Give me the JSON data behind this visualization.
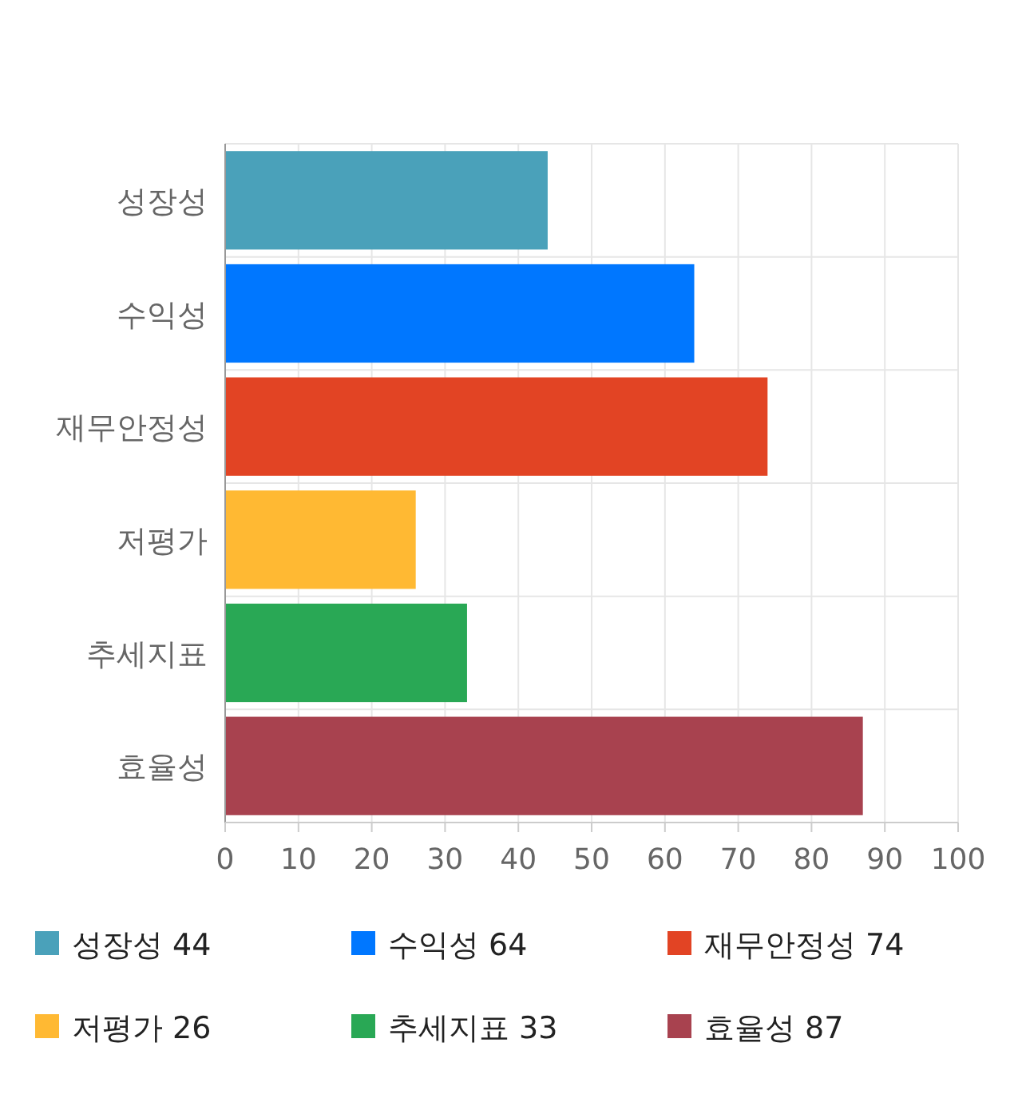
{
  "chart_data": {
    "type": "bar",
    "orientation": "horizontal",
    "stacked": true,
    "categories": [
      "성장성",
      "수익성",
      "재무안정성",
      "저평가",
      "추세지표",
      "효율성"
    ],
    "series": [
      {
        "name": "성장성 44",
        "color": "#4aa1ba",
        "values": [
          44,
          null,
          null,
          null,
          null,
          null
        ]
      },
      {
        "name": "수익성 64",
        "color": "#0077ff",
        "values": [
          null,
          64,
          null,
          null,
          null,
          null
        ]
      },
      {
        "name": "재무안정성 74",
        "color": "#e24424",
        "values": [
          null,
          null,
          74,
          null,
          null,
          null
        ]
      },
      {
        "name": "저평가 26",
        "color": "#ffb933",
        "values": [
          null,
          null,
          null,
          26,
          null,
          null
        ]
      },
      {
        "name": "추세지표 33",
        "color": "#29a855",
        "values": [
          null,
          null,
          null,
          null,
          33,
          null
        ]
      },
      {
        "name": "효율성 87",
        "color": "#a8424f",
        "values": [
          null,
          null,
          null,
          null,
          null,
          87
        ]
      }
    ],
    "xlim": [
      0,
      100
    ],
    "xticks": [
      0,
      10,
      20,
      30,
      40,
      50,
      60,
      70,
      80,
      90,
      100
    ],
    "grid": true,
    "legend": "bottom"
  }
}
